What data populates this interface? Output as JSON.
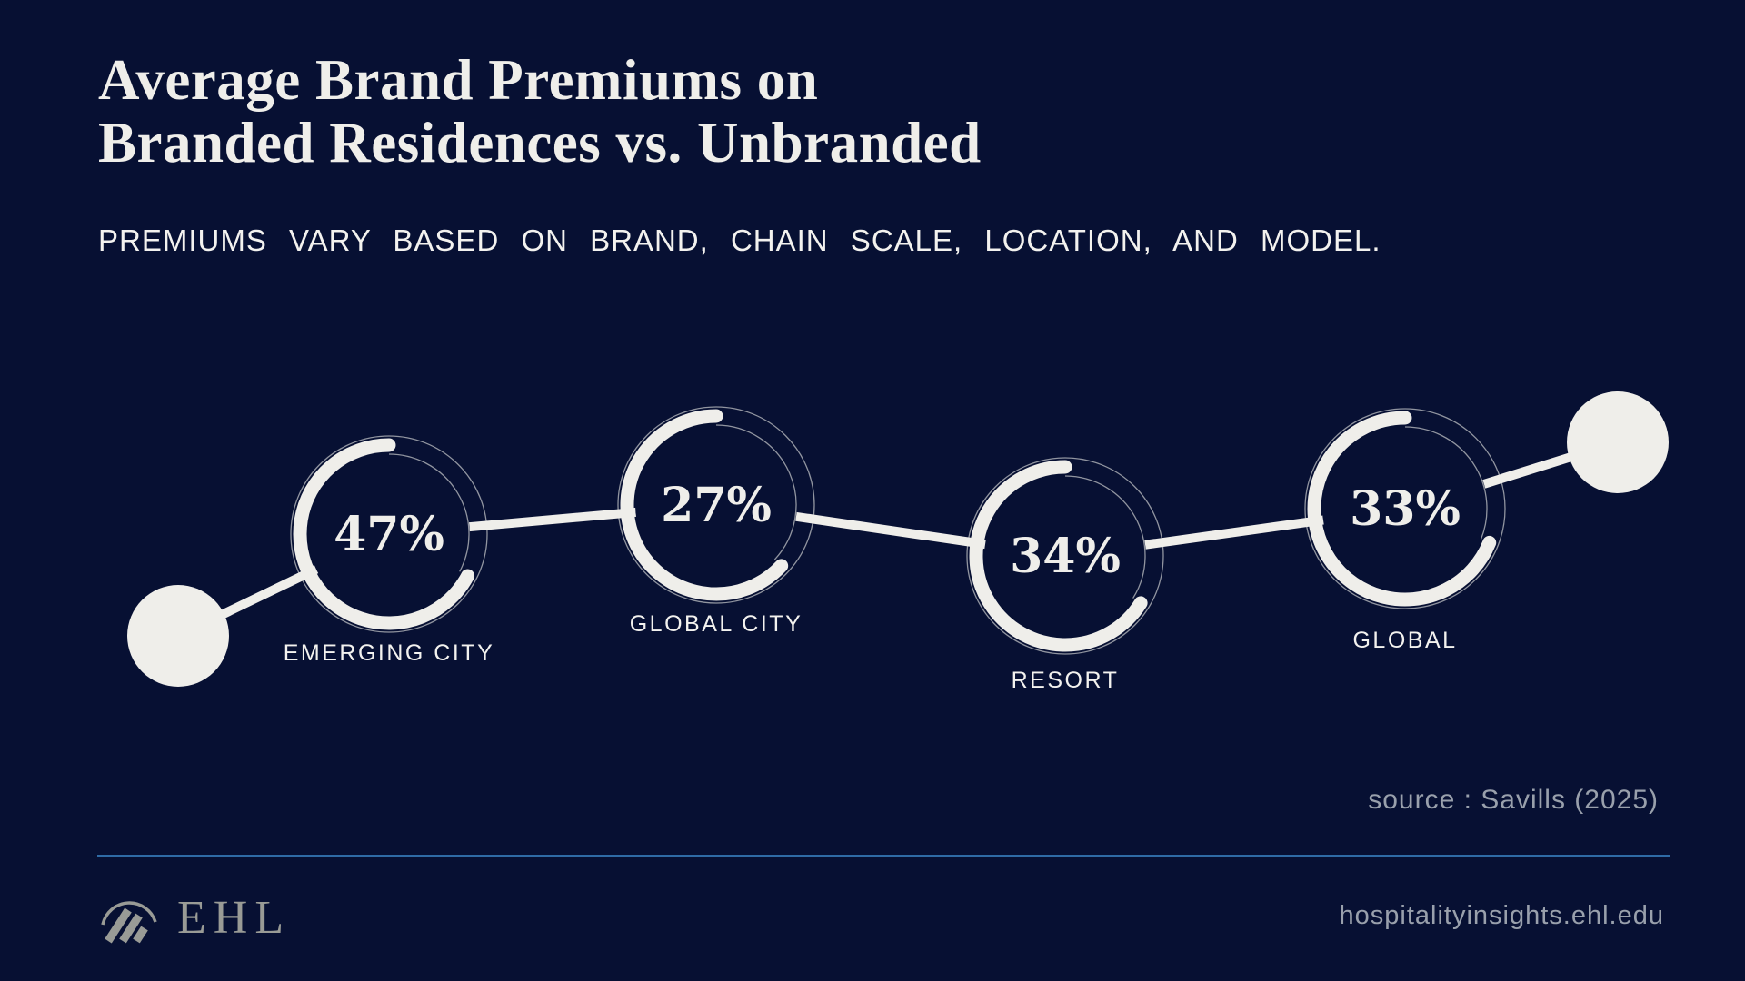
{
  "title": {
    "line1": "Average Brand Premiums on",
    "line2": "Branded Residences vs. Unbranded"
  },
  "subtitle": "PREMIUMS VARY BASED ON BRAND, CHAIN SCALE, LOCATION, AND MODEL.",
  "chart_data": {
    "type": "line",
    "categories": [
      "EMERGING CITY",
      "GLOBAL CITY",
      "RESORT",
      "GLOBAL"
    ],
    "values": [
      47,
      27,
      34,
      33
    ],
    "value_labels": [
      "47%",
      "27%",
      "34%",
      "33%"
    ],
    "unit": "%",
    "title": "Average Brand Premiums on Branded Residences vs. Unbranded",
    "legend": "none",
    "grid": "off"
  },
  "source": "source : Savills (2025)",
  "footer": {
    "logo_text": "EHL",
    "url": "hospitalityinsights.ehl.edu"
  },
  "colors": {
    "background": "#071033",
    "ivory": "#efeeea",
    "text_gray": "#99a0ac",
    "divider_blue": "#2f6ba6",
    "logo_gray": "#999b96"
  }
}
